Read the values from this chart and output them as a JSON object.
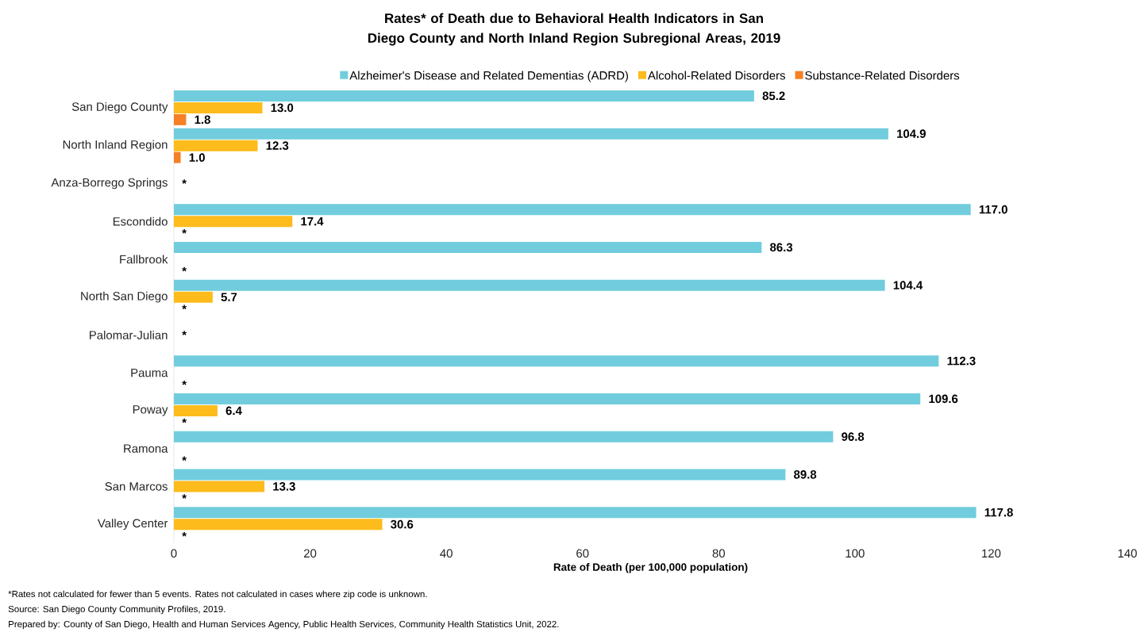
{
  "chart_data": {
    "type": "bar",
    "orientation": "horizontal",
    "title": "Rates* of Death due to Behavioral Health Indicators in San Diego County and North Inland Region Subregional Areas, 2019",
    "xlabel": "Rate of Death (per 100,000 population)",
    "categories": [
      "San Diego County",
      "North Inland Region",
      "Anza-Borrego Springs",
      "Escondido",
      "Fallbrook",
      "North San Diego",
      "Palomar-Julian",
      "Pauma",
      "Poway",
      "Ramona",
      "San Marcos",
      "Valley Center"
    ],
    "series": [
      {
        "name": "Alzheimer's Disease and Related Dementias (ADRD)",
        "color": "#71cddd",
        "values": [
          85.2,
          104.9,
          null,
          117.0,
          86.3,
          104.4,
          null,
          112.3,
          109.6,
          96.8,
          89.8,
          117.8
        ],
        "value_labels": [
          "85.2",
          "104.9",
          null,
          "117.0",
          "86.3",
          "104.4",
          null,
          "112.3",
          "109.6",
          "96.8",
          "89.8",
          "117.8"
        ]
      },
      {
        "name": "Alcohol-Related Disorders",
        "color": "#fdbb1c",
        "values": [
          13.0,
          12.3,
          null,
          17.4,
          null,
          5.7,
          null,
          null,
          6.4,
          null,
          13.3,
          30.6
        ],
        "value_labels": [
          "13.0",
          "12.3",
          "*",
          "17.4",
          null,
          "5.7",
          "*",
          null,
          "6.4",
          null,
          "13.3",
          "30.6"
        ]
      },
      {
        "name": "Substance-Related Disorders",
        "color": "#f58025",
        "values": [
          1.8,
          1.0,
          null,
          null,
          null,
          null,
          null,
          null,
          null,
          null,
          null,
          null
        ],
        "value_labels": [
          "1.8",
          "1.0",
          null,
          "*",
          "*",
          "*",
          null,
          "*",
          "*",
          "*",
          "*",
          "*"
        ]
      }
    ],
    "xlim": [
      0,
      140
    ],
    "xticks": [
      0,
      20,
      40,
      60,
      80,
      100,
      120,
      140
    ],
    "legend": "top",
    "grid": false,
    "annotations": [
      "*Rates not calculated for fewer than 5 events. Rates not calculated in cases where zip code is unknown.",
      "Source: San Diego County Community Profiles, 2019.",
      "Prepared by: County of San Diego, Health and Human Services Agency, Public Health Services, Community Health Statistics Unit, 2022."
    ]
  }
}
